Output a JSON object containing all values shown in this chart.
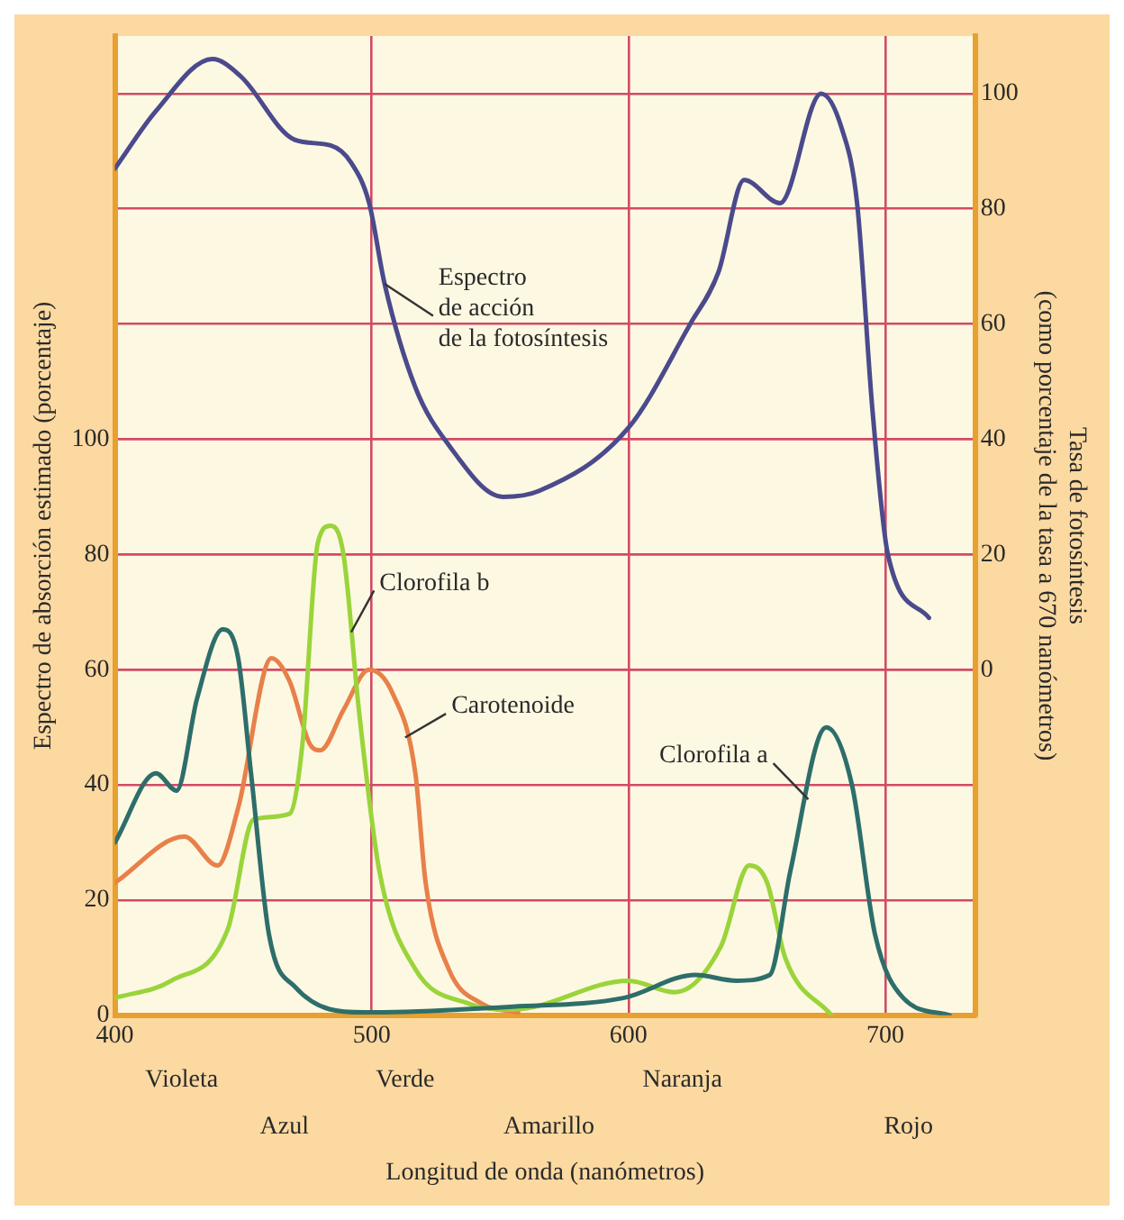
{
  "chart_data": {
    "type": "line",
    "xlabel": "Longitud de onda (nanómetros)",
    "ylabel": "Espectro de absorción estimado (porcentaje)",
    "y2label": "Tasa de fotosíntesis\n(como porcentaje de la tasa a 670 nanómetros)",
    "xlim": [
      400,
      735
    ],
    "xticks": [
      400,
      500,
      600,
      700
    ],
    "ylim": [
      0,
      170
    ],
    "yticks": [
      0,
      20,
      40,
      60,
      80,
      100
    ],
    "y2lim": [
      -60,
      110
    ],
    "y2ticks": [
      0,
      20,
      40,
      60,
      80,
      100
    ],
    "grid": true,
    "legend": false,
    "marker": "none",
    "line_style": "solid",
    "series": [
      {
        "name": "Espectro\nde acción\nde la fotosíntesis",
        "color": "#4a4a8c",
        "axis": "y2",
        "x": [
          400,
          416,
          438,
          449,
          470,
          484,
          492,
          499,
          505,
          517,
          530,
          551,
          565,
          600,
          624,
          635,
          645,
          659,
          675,
          683,
          689,
          695,
          701,
          717
        ],
        "values": [
          87,
          97,
          106,
          103,
          92,
          91,
          88,
          81,
          67,
          49,
          39,
          30,
          31,
          42,
          60,
          69,
          85,
          81,
          100,
          94,
          81,
          45,
          20,
          9
        ]
      },
      {
        "name": "Clorofila a",
        "color": "#2e6e6a",
        "x": [
          400,
          416,
          424,
          432,
          442,
          448,
          453,
          460,
          470,
          497,
          555,
          598,
          626,
          642,
          655,
          663,
          677,
          687,
          696,
          707,
          725
        ],
        "values": [
          30,
          42,
          39,
          55,
          67,
          62,
          42,
          14,
          5,
          0.5,
          1.5,
          3,
          7,
          6,
          7,
          25,
          50,
          40,
          14,
          3,
          0
        ]
      },
      {
        "name": "Clorofila b",
        "color": "#9ad43a",
        "x": [
          400,
          422,
          444,
          454,
          468,
          473,
          479,
          484,
          489,
          495,
          503,
          517,
          538,
          555,
          600,
          618,
          636,
          647,
          654,
          661,
          679
        ],
        "values": [
          3,
          6,
          15,
          34,
          35,
          47,
          82,
          85,
          80,
          53,
          25,
          8,
          2,
          1,
          6,
          4,
          12,
          26,
          23,
          10,
          0
        ]
      },
      {
        "name": "Carotenoide",
        "color": "#e8804a",
        "x": [
          400,
          427,
          440,
          448,
          461,
          468,
          476,
          480,
          489,
          499,
          508,
          517,
          521,
          530,
          543,
          557
        ],
        "values": [
          23,
          31,
          26,
          36,
          62,
          58,
          47,
          46,
          53,
          60,
          56,
          42,
          23,
          8,
          2,
          0.5
        ]
      }
    ],
    "annotations": [
      "Violeta",
      "Azul",
      "Verde",
      "Amarillo",
      "Naranja",
      "Rojo"
    ]
  }
}
